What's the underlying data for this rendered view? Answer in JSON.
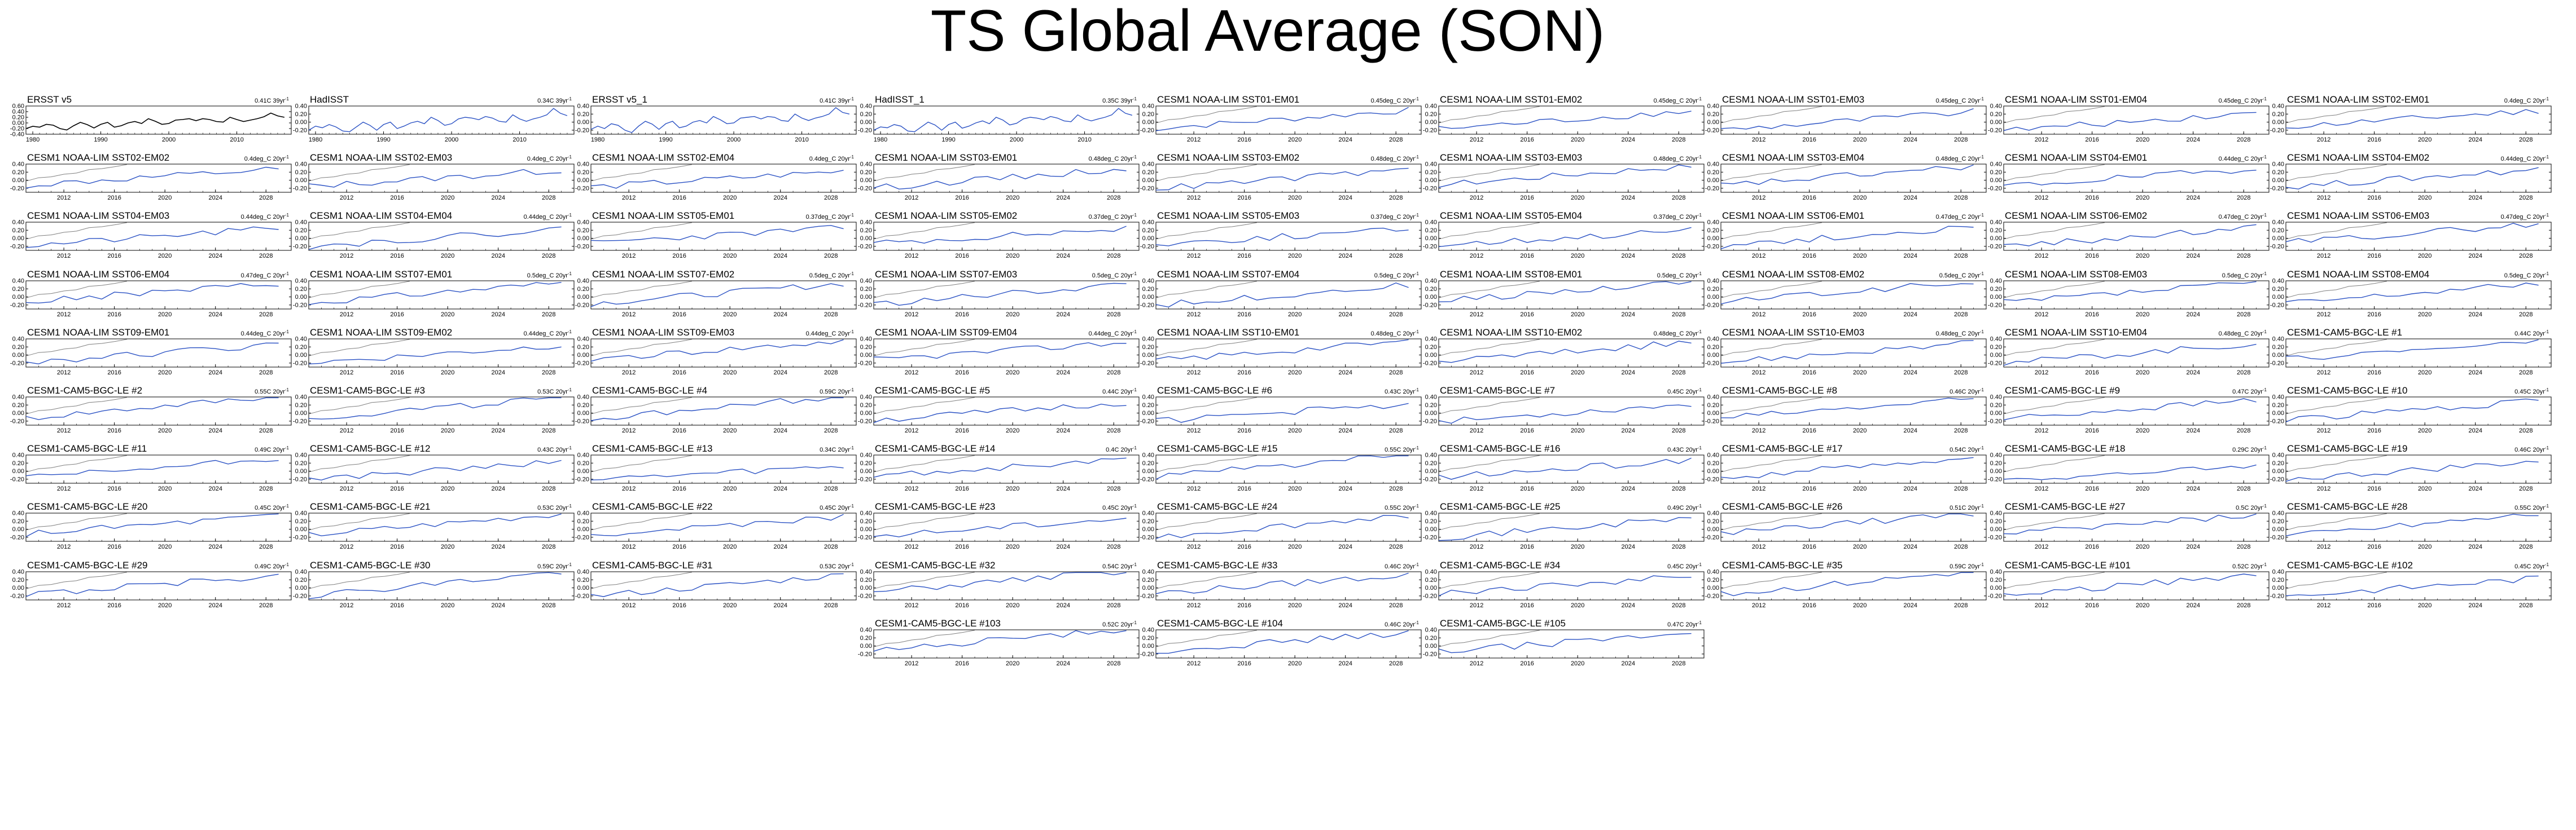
{
  "page": {
    "title": "TS Global Average (SON)"
  },
  "colors": {
    "obs_line": "#000000",
    "model_line": "#2b52c4",
    "reference_line": "#7f7f7f",
    "axes": "#000000"
  },
  "chart_data": [
    {
      "type": "line",
      "title": "ERSST v5",
      "trend": "0.41C 39yr",
      "trend_sup": "-1",
      "xlim": [
        1979,
        2018
      ],
      "xticks": [
        1980,
        1990,
        2000,
        2010
      ],
      "ylim": [
        -0.4,
        0.6
      ],
      "yticks": [
        "0.60",
        "0.40",
        "0.20",
        "0.00",
        "-0.20",
        "-0.40"
      ],
      "series": [
        {
          "x": [
            1979,
            1980,
            1981,
            1982,
            1983,
            1984,
            1985,
            1986,
            1987,
            1988,
            1989,
            1990,
            1991,
            1992,
            1993,
            1994,
            1995,
            1996,
            1997,
            1998,
            1999,
            2000,
            2001,
            2002,
            2003,
            2004,
            2005,
            2006,
            2007,
            2008,
            2009,
            2010,
            2011,
            2012,
            2013,
            2014,
            2015,
            2016,
            2017
          ],
          "values": [
            -0.2,
            -0.12,
            -0.15,
            -0.05,
            -0.08,
            -0.2,
            -0.25,
            -0.1,
            0.02,
            -0.06,
            -0.18,
            -0.05,
            0.02,
            -0.15,
            -0.1,
            0.0,
            0.05,
            -0.02,
            0.15,
            0.06,
            -0.05,
            -0.02,
            0.1,
            0.12,
            0.15,
            0.08,
            0.15,
            0.12,
            0.05,
            0.03,
            0.2,
            0.12,
            0.05,
            0.1,
            0.15,
            0.22,
            0.35,
            0.25,
            0.2
          ],
          "color": "#000000"
        }
      ]
    },
    {
      "type": "line",
      "title": "HadISST",
      "trend": "0.34C 39yr",
      "trend_sup": "-1",
      "xlim": [
        1979,
        2018
      ],
      "xticks": [
        1980,
        1990,
        2000,
        2010
      ],
      "ylim": [
        -0.3,
        0.4
      ],
      "yticks": [
        "0.40",
        "0.20",
        "0.00",
        "-0.20"
      ],
      "series": [
        {
          "x": [
            1979,
            1980,
            1981,
            1982,
            1983,
            1984,
            1985,
            1986,
            1987,
            1988,
            1989,
            1990,
            1991,
            1992,
            1993,
            1994,
            1995,
            1996,
            1997,
            1998,
            1999,
            2000,
            2001,
            2002,
            2003,
            2004,
            2005,
            2006,
            2007,
            2008,
            2009,
            2010,
            2011,
            2012,
            2013,
            2014,
            2015,
            2016,
            2017
          ],
          "values": [
            -0.2,
            -0.1,
            -0.14,
            -0.06,
            -0.12,
            -0.22,
            -0.24,
            -0.12,
            0.0,
            -0.08,
            -0.2,
            -0.06,
            0.0,
            -0.16,
            -0.1,
            -0.02,
            0.02,
            -0.04,
            0.12,
            0.04,
            -0.08,
            -0.04,
            0.08,
            0.12,
            0.1,
            0.06,
            0.14,
            0.1,
            0.02,
            0.0,
            0.18,
            0.08,
            0.02,
            0.08,
            0.12,
            0.18,
            0.34,
            0.22,
            0.16
          ],
          "color": "#2b52c4"
        }
      ]
    },
    {
      "type": "line",
      "title": "ERSST v5_1",
      "trend": "0.41C 39yr",
      "trend_sup": "-1",
      "xlim": [
        1979,
        2018
      ],
      "xticks": [
        1980,
        1990,
        2000,
        2010
      ],
      "ylim": [
        -0.3,
        0.4
      ],
      "yticks": [
        "0.40",
        "0.20",
        "0.00",
        "-0.20"
      ],
      "series": [
        {
          "x": [
            1979,
            1980,
            1981,
            1982,
            1983,
            1984,
            1985,
            1986,
            1987,
            1988,
            1989,
            1990,
            1991,
            1992,
            1993,
            1994,
            1995,
            1996,
            1997,
            1998,
            1999,
            2000,
            2001,
            2002,
            2003,
            2004,
            2005,
            2006,
            2007,
            2008,
            2009,
            2010,
            2011,
            2012,
            2013,
            2014,
            2015,
            2016,
            2017
          ],
          "values": [
            -0.18,
            -0.1,
            -0.16,
            -0.04,
            -0.08,
            -0.2,
            -0.26,
            -0.1,
            0.02,
            -0.05,
            -0.18,
            -0.04,
            0.02,
            -0.14,
            -0.1,
            0.0,
            0.04,
            -0.02,
            0.14,
            0.06,
            -0.04,
            -0.02,
            0.1,
            0.12,
            0.14,
            0.08,
            0.14,
            0.12,
            0.04,
            0.02,
            0.2,
            0.1,
            0.04,
            0.1,
            0.14,
            0.2,
            0.36,
            0.24,
            0.2
          ],
          "color": "#2b52c4"
        }
      ]
    },
    {
      "type": "line",
      "title": "HadISST_1",
      "trend": "0.35C 39yr",
      "trend_sup": "-1",
      "xlim": [
        1979,
        2018
      ],
      "xticks": [
        1980,
        1990,
        2000,
        2010
      ],
      "ylim": [
        -0.3,
        0.4
      ],
      "yticks": [
        "0.40",
        "0.20",
        "0.00",
        "-0.20"
      ],
      "series": [
        {
          "x": [
            1979,
            1980,
            1981,
            1982,
            1983,
            1984,
            1985,
            1986,
            1987,
            1988,
            1989,
            1990,
            1991,
            1992,
            1993,
            1994,
            1995,
            1996,
            1997,
            1998,
            1999,
            2000,
            2001,
            2002,
            2003,
            2004,
            2005,
            2006,
            2007,
            2008,
            2009,
            2010,
            2011,
            2012,
            2013,
            2014,
            2015,
            2016,
            2017
          ],
          "values": [
            -0.2,
            -0.12,
            -0.14,
            -0.06,
            -0.1,
            -0.22,
            -0.24,
            -0.12,
            0.0,
            -0.07,
            -0.2,
            -0.06,
            0.0,
            -0.15,
            -0.1,
            -0.02,
            0.03,
            -0.04,
            0.12,
            0.05,
            -0.07,
            -0.03,
            0.08,
            0.12,
            0.1,
            0.06,
            0.14,
            0.1,
            0.03,
            0.01,
            0.18,
            0.08,
            0.03,
            0.08,
            0.12,
            0.18,
            0.34,
            0.22,
            0.17
          ],
          "color": "#2b52c4"
        }
      ]
    }
  ],
  "ensemble": {
    "xlim": [
      2009,
      2030
    ],
    "xticks": [
      2012,
      2016,
      2020,
      2024,
      2028
    ],
    "ylim": [
      -0.3,
      0.4
    ],
    "yticks": [
      "0.40",
      "0.20",
      "0.00",
      "-0.20"
    ],
    "trend_sup": "-1",
    "panels": [
      {
        "title": "CESM1 NOAA-LIM SST01-EM01",
        "trend": "0.45deg_C 20yr"
      },
      {
        "title": "CESM1 NOAA-LIM SST01-EM02",
        "trend": "0.45deg_C 20yr"
      },
      {
        "title": "CESM1 NOAA-LIM SST01-EM03",
        "trend": "0.45deg_C 20yr"
      },
      {
        "title": "CESM1 NOAA-LIM SST01-EM04",
        "trend": "0.45deg_C 20yr"
      },
      {
        "title": "CESM1 NOAA-LIM SST02-EM01",
        "trend": "0.4deg_C 20yr"
      },
      {
        "title": "CESM1 NOAA-LIM SST02-EM02",
        "trend": "0.4deg_C 20yr"
      },
      {
        "title": "CESM1 NOAA-LIM SST02-EM03",
        "trend": "0.4deg_C 20yr"
      },
      {
        "title": "CESM1 NOAA-LIM SST02-EM04",
        "trend": "0.4deg_C 20yr"
      },
      {
        "title": "CESM1 NOAA-LIM SST03-EM01",
        "trend": "0.48deg_C 20yr"
      },
      {
        "title": "CESM1 NOAA-LIM SST03-EM02",
        "trend": "0.48deg_C 20yr"
      },
      {
        "title": "CESM1 NOAA-LIM SST03-EM03",
        "trend": "0.48deg_C 20yr"
      },
      {
        "title": "CESM1 NOAA-LIM SST03-EM04",
        "trend": "0.48deg_C 20yr"
      },
      {
        "title": "CESM1 NOAA-LIM SST04-EM01",
        "trend": "0.44deg_C 20yr"
      },
      {
        "title": "CESM1 NOAA-LIM SST04-EM02",
        "trend": "0.44deg_C 20yr"
      },
      {
        "title": "CESM1 NOAA-LIM SST04-EM03",
        "trend": "0.44deg_C 20yr"
      },
      {
        "title": "CESM1 NOAA-LIM SST04-EM04",
        "trend": "0.44deg_C 20yr"
      },
      {
        "title": "CESM1 NOAA-LIM SST05-EM01",
        "trend": "0.37deg_C 20yr"
      },
      {
        "title": "CESM1 NOAA-LIM SST05-EM02",
        "trend": "0.37deg_C 20yr"
      },
      {
        "title": "CESM1 NOAA-LIM SST05-EM03",
        "trend": "0.37deg_C 20yr"
      },
      {
        "title": "CESM1 NOAA-LIM SST05-EM04",
        "trend": "0.37deg_C 20yr"
      },
      {
        "title": "CESM1 NOAA-LIM SST06-EM01",
        "trend": "0.47deg_C 20yr"
      },
      {
        "title": "CESM1 NOAA-LIM SST06-EM02",
        "trend": "0.47deg_C 20yr"
      },
      {
        "title": "CESM1 NOAA-LIM SST06-EM03",
        "trend": "0.47deg_C 20yr"
      },
      {
        "title": "CESM1 NOAA-LIM SST06-EM04",
        "trend": "0.47deg_C 20yr"
      },
      {
        "title": "CESM1 NOAA-LIM SST07-EM01",
        "trend": "0.5deg_C 20yr"
      },
      {
        "title": "CESM1 NOAA-LIM SST07-EM02",
        "trend": "0.5deg_C 20yr"
      },
      {
        "title": "CESM1 NOAA-LIM SST07-EM03",
        "trend": "0.5deg_C 20yr"
      },
      {
        "title": "CESM1 NOAA-LIM SST07-EM04",
        "trend": "0.5deg_C 20yr"
      },
      {
        "title": "CESM1 NOAA-LIM SST08-EM01",
        "trend": "0.5deg_C 20yr"
      },
      {
        "title": "CESM1 NOAA-LIM SST08-EM02",
        "trend": "0.5deg_C 20yr"
      },
      {
        "title": "CESM1 NOAA-LIM SST08-EM03",
        "trend": "0.5deg_C 20yr"
      },
      {
        "title": "CESM1 NOAA-LIM SST08-EM04",
        "trend": "0.5deg_C 20yr"
      },
      {
        "title": "CESM1 NOAA-LIM SST09-EM01",
        "trend": "0.44deg_C 20yr"
      },
      {
        "title": "CESM1 NOAA-LIM SST09-EM02",
        "trend": "0.44deg_C 20yr"
      },
      {
        "title": "CESM1 NOAA-LIM SST09-EM03",
        "trend": "0.44deg_C 20yr"
      },
      {
        "title": "CESM1 NOAA-LIM SST09-EM04",
        "trend": "0.44deg_C 20yr"
      },
      {
        "title": "CESM1 NOAA-LIM SST10-EM01",
        "trend": "0.48deg_C 20yr"
      },
      {
        "title": "CESM1 NOAA-LIM SST10-EM02",
        "trend": "0.48deg_C 20yr"
      },
      {
        "title": "CESM1 NOAA-LIM SST10-EM03",
        "trend": "0.48deg_C 20yr"
      },
      {
        "title": "CESM1 NOAA-LIM SST10-EM04",
        "trend": "0.48deg_C 20yr"
      },
      {
        "title": "CESM1-CAM5-BGC-LE #1",
        "trend": "0.44C 20yr"
      },
      {
        "title": "CESM1-CAM5-BGC-LE #2",
        "trend": "0.55C 20yr"
      },
      {
        "title": "CESM1-CAM5-BGC-LE #3",
        "trend": "0.53C 20yr"
      },
      {
        "title": "CESM1-CAM5-BGC-LE #4",
        "trend": "0.59C 20yr"
      },
      {
        "title": "CESM1-CAM5-BGC-LE #5",
        "trend": "0.44C 20yr"
      },
      {
        "title": "CESM1-CAM5-BGC-LE #6",
        "trend": "0.43C 20yr"
      },
      {
        "title": "CESM1-CAM5-BGC-LE #7",
        "trend": "0.45C 20yr"
      },
      {
        "title": "CESM1-CAM5-BGC-LE #8",
        "trend": "0.46C 20yr"
      },
      {
        "title": "CESM1-CAM5-BGC-LE #9",
        "trend": "0.47C 20yr"
      },
      {
        "title": "CESM1-CAM5-BGC-LE #10",
        "trend": "0.45C 20yr"
      },
      {
        "title": "CESM1-CAM5-BGC-LE #11",
        "trend": "0.49C 20yr"
      },
      {
        "title": "CESM1-CAM5-BGC-LE #12",
        "trend": "0.43C 20yr"
      },
      {
        "title": "CESM1-CAM5-BGC-LE #13",
        "trend": "0.34C 20yr"
      },
      {
        "title": "CESM1-CAM5-BGC-LE #14",
        "trend": "0.4C 20yr"
      },
      {
        "title": "CESM1-CAM5-BGC-LE #15",
        "trend": "0.55C 20yr"
      },
      {
        "title": "CESM1-CAM5-BGC-LE #16",
        "trend": "0.43C 20yr"
      },
      {
        "title": "CESM1-CAM5-BGC-LE #17",
        "trend": "0.54C 20yr"
      },
      {
        "title": "CESM1-CAM5-BGC-LE #18",
        "trend": "0.29C 20yr"
      },
      {
        "title": "CESM1-CAM5-BGC-LE #19",
        "trend": "0.46C 20yr"
      },
      {
        "title": "CESM1-CAM5-BGC-LE #20",
        "trend": "0.45C 20yr"
      },
      {
        "title": "CESM1-CAM5-BGC-LE #21",
        "trend": "0.53C 20yr"
      },
      {
        "title": "CESM1-CAM5-BGC-LE #22",
        "trend": "0.45C 20yr"
      },
      {
        "title": "CESM1-CAM5-BGC-LE #23",
        "trend": "0.45C 20yr"
      },
      {
        "title": "CESM1-CAM5-BGC-LE #24",
        "trend": "0.55C 20yr"
      },
      {
        "title": "CESM1-CAM5-BGC-LE #25",
        "trend": "0.49C 20yr"
      },
      {
        "title": "CESM1-CAM5-BGC-LE #26",
        "trend": "0.51C 20yr"
      },
      {
        "title": "CESM1-CAM5-BGC-LE #27",
        "trend": "0.5C 20yr"
      },
      {
        "title": "CESM1-CAM5-BGC-LE #28",
        "trend": "0.55C 20yr"
      },
      {
        "title": "CESM1-CAM5-BGC-LE #29",
        "trend": "0.49C 20yr"
      },
      {
        "title": "CESM1-CAM5-BGC-LE #30",
        "trend": "0.59C 20yr"
      },
      {
        "title": "CESM1-CAM5-BGC-LE #31",
        "trend": "0.53C 20yr"
      },
      {
        "title": "CESM1-CAM5-BGC-LE #32",
        "trend": "0.54C 20yr"
      },
      {
        "title": "CESM1-CAM5-BGC-LE #33",
        "trend": "0.46C 20yr"
      },
      {
        "title": "CESM1-CAM5-BGC-LE #34",
        "trend": "0.45C 20yr"
      },
      {
        "title": "CESM1-CAM5-BGC-LE #35",
        "trend": "0.59C 20yr"
      },
      {
        "title": "CESM1-CAM5-BGC-LE #101",
        "trend": "0.52C 20yr"
      },
      {
        "title": "CESM1-CAM5-BGC-LE #102",
        "trend": "0.45C 20yr"
      },
      {
        "title": "CESM1-CAM5-BGC-LE #103",
        "trend": "0.52C 20yr"
      },
      {
        "title": "CESM1-CAM5-BGC-LE #104",
        "trend": "0.46C 20yr"
      },
      {
        "title": "CESM1-CAM5-BGC-LE #105",
        "trend": "0.47C 20yr"
      }
    ]
  }
}
